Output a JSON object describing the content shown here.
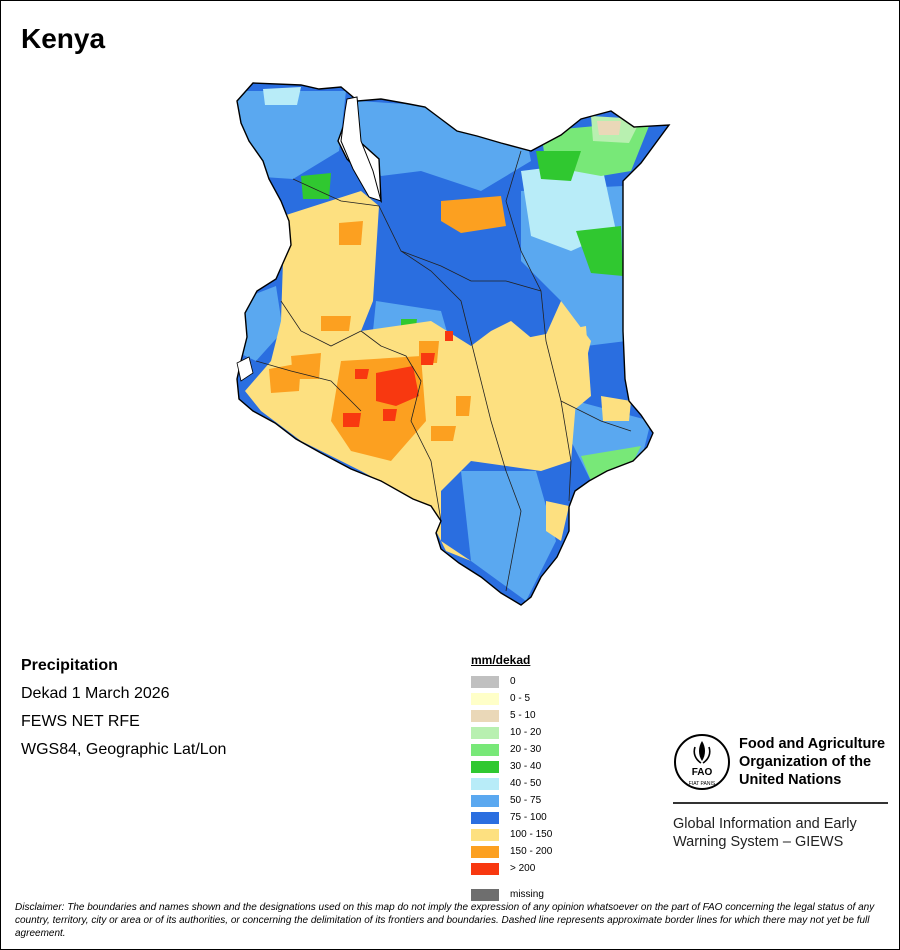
{
  "title": "Kenya",
  "info": {
    "variable": "Precipitation",
    "period": "Dekad 1 March 2026",
    "source": "FEWS NET RFE",
    "projection": "WGS84, Geographic Lat/Lon"
  },
  "legend": {
    "unit": "mm/dekad",
    "classes": [
      {
        "label": "0",
        "color": "#c0c0c0"
      },
      {
        "label": "0 - 5",
        "color": "#ffffc8"
      },
      {
        "label": "5 - 10",
        "color": "#ead8b8"
      },
      {
        "label": "10 - 20",
        "color": "#b8f0b0"
      },
      {
        "label": "20 - 30",
        "color": "#78e878"
      },
      {
        "label": "30 - 40",
        "color": "#30c830"
      },
      {
        "label": "40 - 50",
        "color": "#b8ecf8"
      },
      {
        "label": "50 - 75",
        "color": "#5aa8f0"
      },
      {
        "label": "75 - 100",
        "color": "#2a6ee0"
      },
      {
        "label": "100 - 150",
        "color": "#fde080"
      },
      {
        "label": "150 - 200",
        "color": "#fca020"
      },
      {
        "label": "> 200",
        "color": "#f83810"
      }
    ],
    "missing": {
      "label": "missing",
      "color": "#6e6e6e"
    }
  },
  "organization": {
    "name_lines": [
      "Food and Agriculture",
      "Organization of the",
      "United Nations"
    ],
    "logo_text": "FAO",
    "logo_motto": "FIAT PANIS",
    "system_lines": [
      "Global Information and Early",
      "Warning System – GIEWS"
    ]
  },
  "disclaimer": "Disclaimer: The boundaries and names shown and the designations used on this map do not imply the expression of any opinion whatsoever on the part of FAO concerning the legal status of any country, territory, city or area or of its authorities, or concerning the delimitation of its frontiers and boundaries. Dashed line represents approximate border lines for which there may not yet be full agreement."
}
